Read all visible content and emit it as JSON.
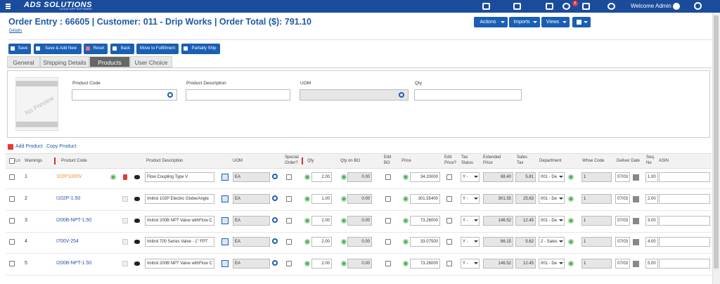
{
  "nav": {
    "brand": "ADS SOLUTIONS",
    "tagline": "CLOUD ERP SOFTWARE",
    "notification_count": "6",
    "welcome": "Welcome Admin"
  },
  "header": {
    "title": "Order Entry : 66605 | Customer: 011 - Drip Works | Order Total ($): 791.10",
    "details_link": "Details"
  },
  "menus": [
    "Actions",
    "Imports",
    "Views"
  ],
  "toolbar": [
    "Save",
    "Save & Add New",
    "Reset",
    "Back",
    "Move to Fulfillment",
    "Partially Ship"
  ],
  "tabs": [
    "General",
    "Shipping Details",
    "Products",
    "User Choice"
  ],
  "search": {
    "no_preview": "No Preview",
    "fields": [
      "Product Code",
      "Product Description",
      "UOM",
      "Qty"
    ]
  },
  "grid": {
    "actions": [
      "Add Product",
      "Copy Product"
    ],
    "columns": [
      "Ln",
      "Warnings",
      "Product Code",
      "Product Description",
      "UOM",
      "Special Order?",
      "Qty",
      "Qty on BO",
      "Edit BO",
      "Price",
      "Edit Price?",
      "Tax Status",
      "Extended Price",
      "Sales Tax",
      "Department",
      "Whse Code",
      "Deliver Date",
      "Seq. No",
      "ASIN"
    ],
    "rows": [
      {
        "ln": "1",
        "code": "102P1000V",
        "description": "Flow Coupling Type V",
        "uom": "EA",
        "qty": "2.00",
        "qty_on_bo": "0.00",
        "price": "34.20000",
        "tax_status": "Y -",
        "extended_price": "68.40",
        "sales_tax": "5.81",
        "department": "001 - De",
        "whse_code": "1",
        "deliver_date": "07/03",
        "seq_no": "1.00"
      },
      {
        "ln": "2",
        "code": "I102P-1.50",
        "description": "Imitrol 102P Electric Globe/Angle",
        "uom": "EA",
        "qty": "1.00",
        "qty_on_bo": "0.00",
        "price": "301.55400",
        "tax_status": "Y -",
        "extended_price": "301.55",
        "sales_tax": "25.63",
        "department": "001 - De",
        "whse_code": "1",
        "deliver_date": "07/03",
        "seq_no": "2.00"
      },
      {
        "ln": "3",
        "code": "I200B-NPT-1.50",
        "description": "Imitrol 200B NPT Valve withFlow C",
        "uom": "EA",
        "qty": "2.00",
        "qty_on_bo": "0.00",
        "price": "73.26000",
        "tax_status": "Y -",
        "extended_price": "146.52",
        "sales_tax": "12.45",
        "department": "001 - De",
        "whse_code": "1",
        "deliver_date": "07/03",
        "seq_no": "3.00"
      },
      {
        "ln": "4",
        "code": "I700V-254",
        "description": "Imitrol 700 Series Valve - 1\" FPT",
        "uom": "EA",
        "qty": "2.00",
        "qty_on_bo": "0.00",
        "price": "33.07500",
        "tax_status": "Y -",
        "extended_price": "66.15",
        "sales_tax": "5.62",
        "department": "2 - Sales",
        "whse_code": "1",
        "deliver_date": "07/03",
        "seq_no": "4.00"
      },
      {
        "ln": "5",
        "code": "I200B-NPT-1.50",
        "description": "Imitrol 200B NPT Valve withFlow C",
        "uom": "EA",
        "qty": "2.00",
        "qty_on_bo": "0.00",
        "price": "73.26000",
        "tax_status": "Y -",
        "extended_price": "146.52",
        "sales_tax": "12.45",
        "department": "001 - De",
        "whse_code": "1",
        "deliver_date": "07/03",
        "seq_no": "5.00"
      }
    ]
  }
}
